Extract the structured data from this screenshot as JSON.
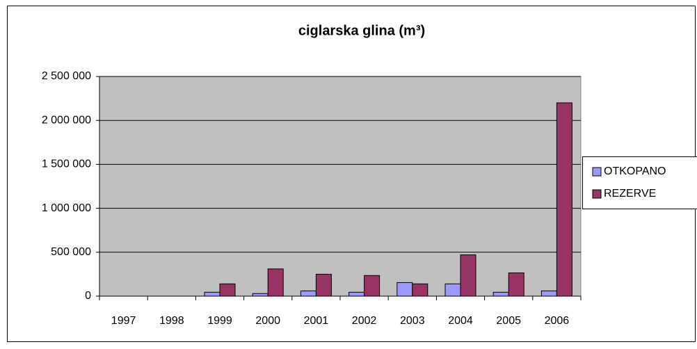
{
  "chart_data": {
    "type": "bar",
    "title": "ciglarska glina  (m³)",
    "categories": [
      "1997",
      "1998",
      "1999",
      "2000",
      "2001",
      "2002",
      "2003",
      "2004",
      "2005",
      "2006"
    ],
    "series": [
      {
        "name": "OTKOPANO",
        "color": "#9999ff",
        "values": [
          0,
          0,
          45000,
          30000,
          60000,
          45000,
          155000,
          140000,
          45000,
          60000
        ]
      },
      {
        "name": "REZERVE",
        "color": "#993366",
        "values": [
          0,
          0,
          140000,
          310000,
          250000,
          235000,
          140000,
          470000,
          265000,
          2200000
        ]
      }
    ],
    "ylim": [
      0,
      2500000
    ],
    "yticks": [
      0,
      {
        "value": 500000,
        "label": "500 000"
      },
      {
        "value": 1000000,
        "label": "1 000 000"
      },
      {
        "value": 1500000,
        "label": "1 500 000"
      },
      {
        "value": 2000000,
        "label": "2 000 000"
      },
      {
        "value": 2500000,
        "label": "2 500 000"
      }
    ],
    "grid": true,
    "legend": "right"
  }
}
